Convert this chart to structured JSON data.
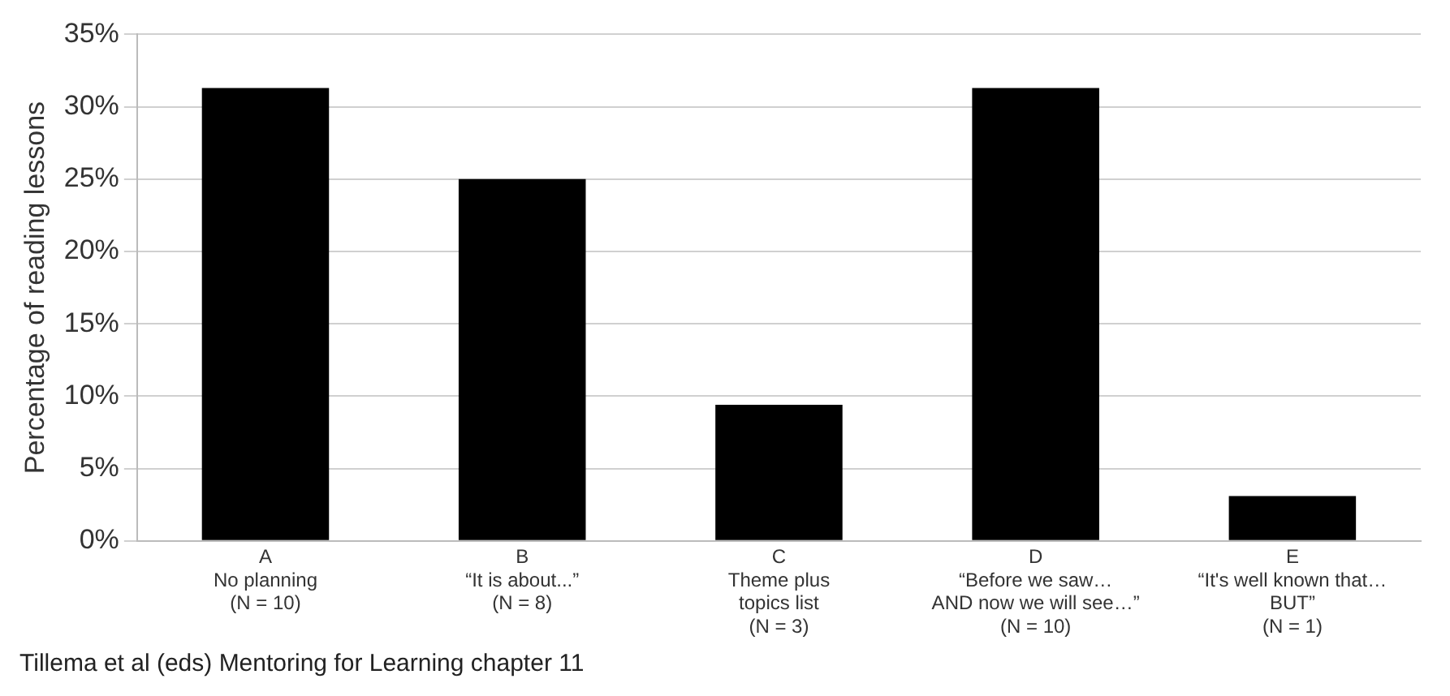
{
  "chart_data": {
    "type": "bar",
    "ylabel": "Percentage of reading lessons",
    "categories": [
      "A\nNo planning\n(N = 10)",
      "B\n“It is about...”\n(N = 8)",
      "C\nTheme plus\ntopics list\n(N = 3)",
      "D\n“Before we saw…\nAND now we will see…”\n(N = 10)",
      "E\n“It's well known that…\nBUT”\n(N = 1)"
    ],
    "values": [
      31.3,
      25,
      9.4,
      31.3,
      3.1
    ],
    "color": "#000000",
    "ylim": [
      0,
      35
    ],
    "yticks": [
      {
        "value": 0,
        "label": "0%"
      },
      {
        "value": 5,
        "label": "5%"
      },
      {
        "value": 10,
        "label": "10%"
      },
      {
        "value": 15,
        "label": "15%"
      },
      {
        "value": 20,
        "label": "20%"
      },
      {
        "value": 25,
        "label": "25%"
      },
      {
        "value": 30,
        "label": "30%"
      },
      {
        "value": 35,
        "label": "35%"
      }
    ],
    "grid": "y",
    "legend": false,
    "annotations": [
      "Tillema et al (eds) Mentoring for Learning chapter 11"
    ]
  }
}
